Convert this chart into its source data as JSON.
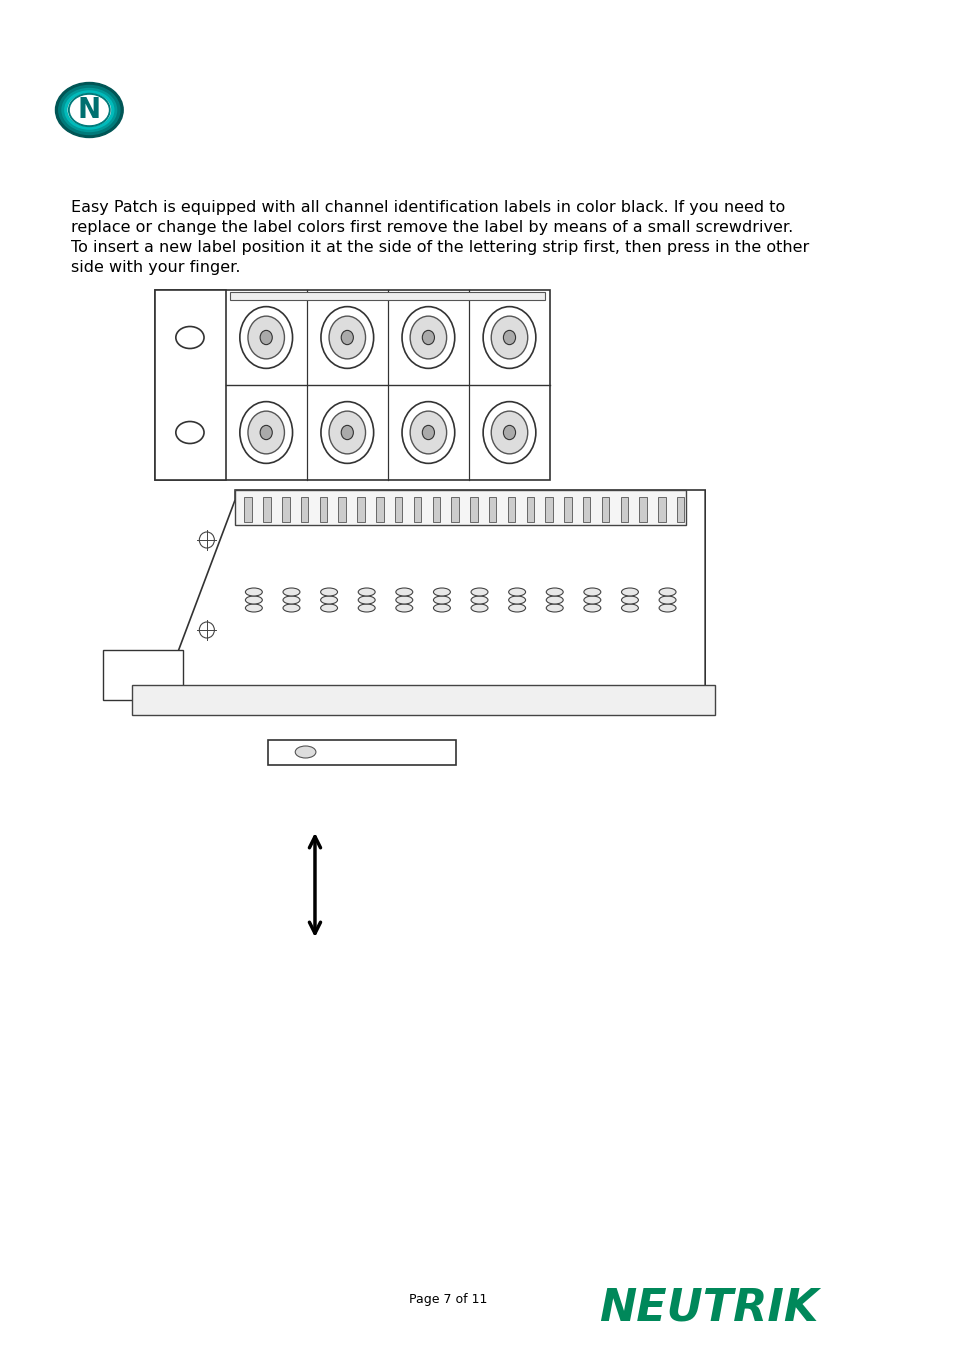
{
  "bg_color": "#ffffff",
  "text_color": "#000000",
  "teal_color": "#007070",
  "neutrik_green": "#00885A",
  "page_text": "Page 7 of 11",
  "body_text_line1": "Easy Patch is equipped with all channel identification labels in color black. If you need to",
  "body_text_line2": "replace or change the label colors first remove the label by means of a small screwdriver.",
  "body_text_line3": "To insert a new label position it at the side of the lettering strip first, then press in the other",
  "body_text_line4": "side with your finger.",
  "font_size_body": 11.5,
  "font_size_page": 9,
  "font_size_neutrik": 32
}
